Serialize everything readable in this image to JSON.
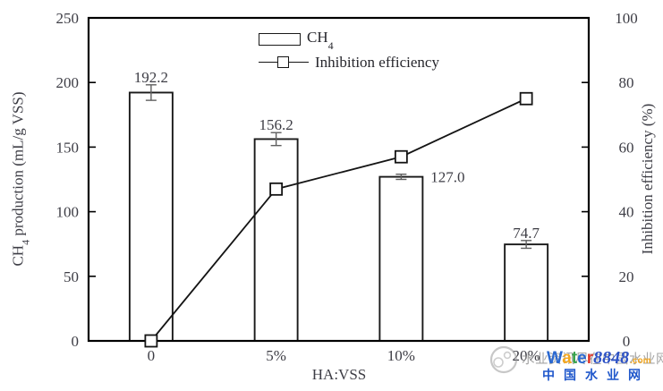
{
  "chart_data": {
    "type": "bar+line",
    "categories": [
      "0",
      "5%",
      "10%",
      "20%"
    ],
    "xlabel": "HA:VSS",
    "left_axis": {
      "label_prefix": "CH",
      "label_sub": "4",
      "label_rest": " production (mL/g VSS)",
      "min": 0,
      "max": 250,
      "step": 50
    },
    "right_axis": {
      "label": "Inhibition efficiency (%)",
      "min": 0,
      "max": 100,
      "step": 20
    },
    "series": [
      {
        "name": "CH4",
        "type": "bar",
        "axis": "left",
        "values": [
          192.2,
          156.2,
          127.0,
          74.7
        ],
        "value_labels": [
          "192.2",
          "156.2",
          "127.0",
          "74.7"
        ],
        "errors": [
          6,
          5,
          2,
          3
        ],
        "bar_fill": "#ffffff",
        "bar_border": "#1a1a1a"
      },
      {
        "name": "Inhibition efficiency",
        "type": "line",
        "axis": "right",
        "values": [
          0,
          47,
          57,
          75
        ],
        "marker": "open-square",
        "color": "#141414"
      }
    ],
    "legend": {
      "position": "top-center-inside",
      "bar_entry_prefix": "CH",
      "bar_entry_sub": "4",
      "line_entry": "Inhibition efficiency"
    },
    "grid": false,
    "frame_color": "#000000",
    "error_bar_color": "#5f5f5f",
    "tick_label_color": "#3d3d45",
    "data_label_color": "#26262c"
  },
  "watermark": {
    "logo_letters": [
      {
        "ch": "W",
        "color": "#2a68d0",
        "kind": "word"
      },
      {
        "ch": "a",
        "color": "#f4a71d",
        "kind": "word"
      },
      {
        "ch": "t",
        "color": "#37a24b",
        "kind": "word"
      },
      {
        "ch": "e",
        "color": "#2a68d0",
        "kind": "word"
      },
      {
        "ch": "r",
        "color": "#df3a2e",
        "kind": "word"
      },
      {
        "ch": "8",
        "color": "#2d52c6",
        "kind": "digit"
      },
      {
        "ch": "8",
        "color": "#2d52c6",
        "kind": "digit"
      },
      {
        "ch": "4",
        "color": "#2d52c6",
        "kind": "digit"
      },
      {
        "ch": "8",
        "color": "#2d52c6",
        "kind": "digit"
      }
    ],
    "dotcom": ".com",
    "dotcom_color": "#f4a71d",
    "site_name": "中国水业网",
    "site_color": "#1f57cb",
    "ghost_text": "水业资讯尽在中国水业网"
  }
}
